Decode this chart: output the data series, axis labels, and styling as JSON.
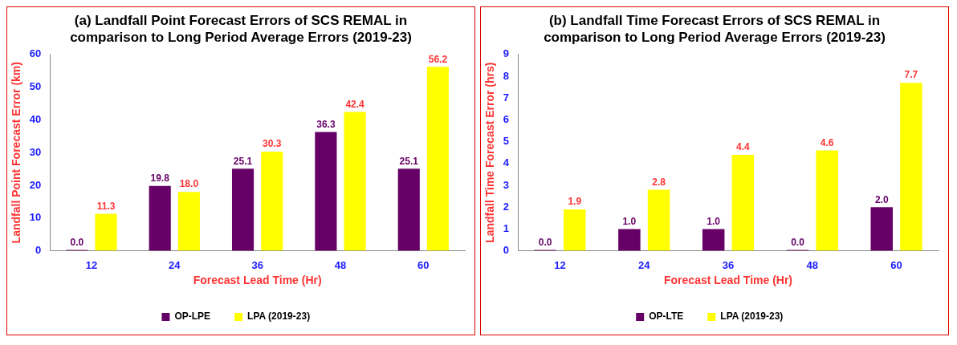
{
  "chart_data": [
    {
      "type": "bar",
      "title": "(a) Landfall Point Forecast Errors of SCS REMAL in comparison to Long Period Average Errors (2019-23)",
      "xlabel": "Forecast Lead Time (Hr)",
      "ylabel": "Landfall Point Forecast Error (km)",
      "categories": [
        "12",
        "24",
        "36",
        "48",
        "60"
      ],
      "ylim": [
        0,
        60
      ],
      "yticks": [
        0,
        10,
        20,
        30,
        40,
        50,
        60
      ],
      "legend": "bottom",
      "series": [
        {
          "name": "OP-LPE",
          "color": "#660066",
          "values": [
            0.0,
            19.8,
            25.1,
            36.3,
            25.1
          ],
          "value_labels": [
            "0.0",
            "19.8",
            "25.1",
            "36.3",
            "25.1"
          ]
        },
        {
          "name": "LPA (2019-23)",
          "color": "#ffff00",
          "values": [
            11.3,
            18.0,
            30.3,
            42.4,
            56.2
          ],
          "value_labels": [
            "11.3",
            "18.0",
            "30.3",
            "42.4",
            "56.2"
          ]
        }
      ]
    },
    {
      "type": "bar",
      "title": "(b) Landfall Time Forecast Errors of SCS REMAL in comparison to Long Period Average Errors (2019-23)",
      "xlabel": "Forecast Lead Time (Hr)",
      "ylabel": "Landfall Time Forecast Error (hrs)",
      "categories": [
        "12",
        "24",
        "36",
        "48",
        "60"
      ],
      "ylim": [
        0,
        9
      ],
      "yticks": [
        0,
        1,
        2,
        3,
        4,
        5,
        6,
        7,
        8,
        9
      ],
      "legend": "bottom",
      "series": [
        {
          "name": "OP-LTE",
          "color": "#660066",
          "values": [
            0.0,
            1.0,
            1.0,
            0.0,
            2.0
          ],
          "value_labels": [
            "0.0",
            "1.0",
            "1.0",
            "0.0",
            "2.0"
          ]
        },
        {
          "name": "LPA (2019-23)",
          "color": "#ffff00",
          "values": [
            1.9,
            2.8,
            4.4,
            4.6,
            7.7
          ],
          "value_labels": [
            "1.9",
            "2.8",
            "4.4",
            "4.6",
            "7.7"
          ]
        }
      ]
    }
  ]
}
